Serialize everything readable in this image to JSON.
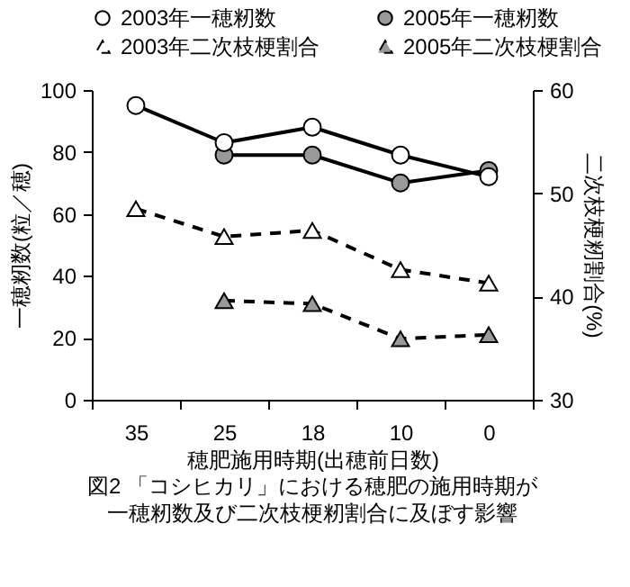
{
  "chart_data": {
    "type": "line",
    "xlabel": "穂肥施用時期(出穂前日数)",
    "ylabel": "一穂籾数(粒／穂)",
    "y2label": "二次枝梗籾割合(%)",
    "annotations": [
      "図2 「コシヒカリ」における穂肥の施用時期が",
      "一穂籾数及び二次枝梗籾割合に及ぼす影響"
    ],
    "categories": [
      "35",
      "25",
      "18",
      "10",
      "0"
    ],
    "series": [
      {
        "name": "2003年一穂籾数",
        "color": "#ffffff",
        "values": [
          95,
          83,
          88,
          79,
          72
        ],
        "marker": "circle",
        "line_style": "solid"
      },
      {
        "name": "2005年一穂籾数",
        "color": "#999999",
        "values": [
          null,
          79,
          79,
          70,
          74
        ],
        "marker": "circle",
        "line_style": "solid"
      },
      {
        "name": "2003年二次枝梗割合",
        "color": "#ffffff",
        "values": [
          48.5,
          45.8,
          46.4,
          42.6,
          41.3
        ],
        "axis": "y2",
        "marker": "triangle",
        "line_style": "dashed"
      },
      {
        "name": "2005年二次枝梗割合",
        "color": "#999999",
        "values": [
          null,
          39.6,
          39.3,
          35.9,
          36.3
        ],
        "axis": "y2",
        "marker": "triangle",
        "line_style": "dashed"
      }
    ],
    "ylim": [
      0,
      100
    ],
    "yticks": [
      0,
      20,
      40,
      60,
      80,
      100
    ],
    "y2lim": [
      30,
      60
    ],
    "y2ticks": [
      30,
      40,
      50,
      60
    ],
    "grid": false,
    "legend": "top"
  }
}
